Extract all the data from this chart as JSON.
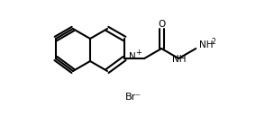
{
  "bg": "#ffffff",
  "lw": 1.5,
  "lc": "#000000",
  "atoms": {
    "N+_label": "N",
    "plus_label": "+",
    "O_label": "O",
    "NH_label": "NH",
    "NH2_label": "NH2",
    "Br_label": "Br⁻"
  },
  "figsize": [
    3.04,
    1.29
  ],
  "dpi": 100
}
